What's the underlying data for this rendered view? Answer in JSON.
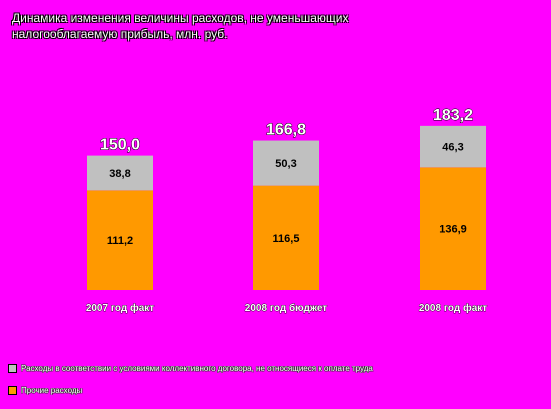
{
  "chart_data": {
    "type": "bar",
    "stacked": true,
    "title": "Динамика изменения величины расходов, не уменьшающих налогооблагаемую прибыль, млн. руб.",
    "categories": [
      "2007 год факт",
      "2008 год бюджет",
      "2008 год факт"
    ],
    "series": [
      {
        "name": "Прочие расходы",
        "values": [
          111.2,
          116.5,
          136.9
        ],
        "labels": [
          "111,2",
          "116,5",
          "136,9"
        ],
        "color": "#FF9900"
      },
      {
        "name": "Расходы в соответствии с условиями коллективного договора, не относящиеся к оплате труда",
        "values": [
          38.8,
          50.3,
          46.3
        ],
        "labels": [
          "38,8",
          "50,3",
          "46,3"
        ],
        "color": "#C0C0C0"
      }
    ],
    "totals": [
      150.0,
      166.8,
      183.2
    ],
    "total_labels": [
      "150,0",
      "166,8",
      "183,2"
    ],
    "xlabel": "",
    "ylabel": "",
    "ylim": [
      0,
      200
    ],
    "grid": false,
    "legend_position": "bottom",
    "legend_order": [
      1,
      0
    ],
    "background_color": "#FF00FF"
  }
}
